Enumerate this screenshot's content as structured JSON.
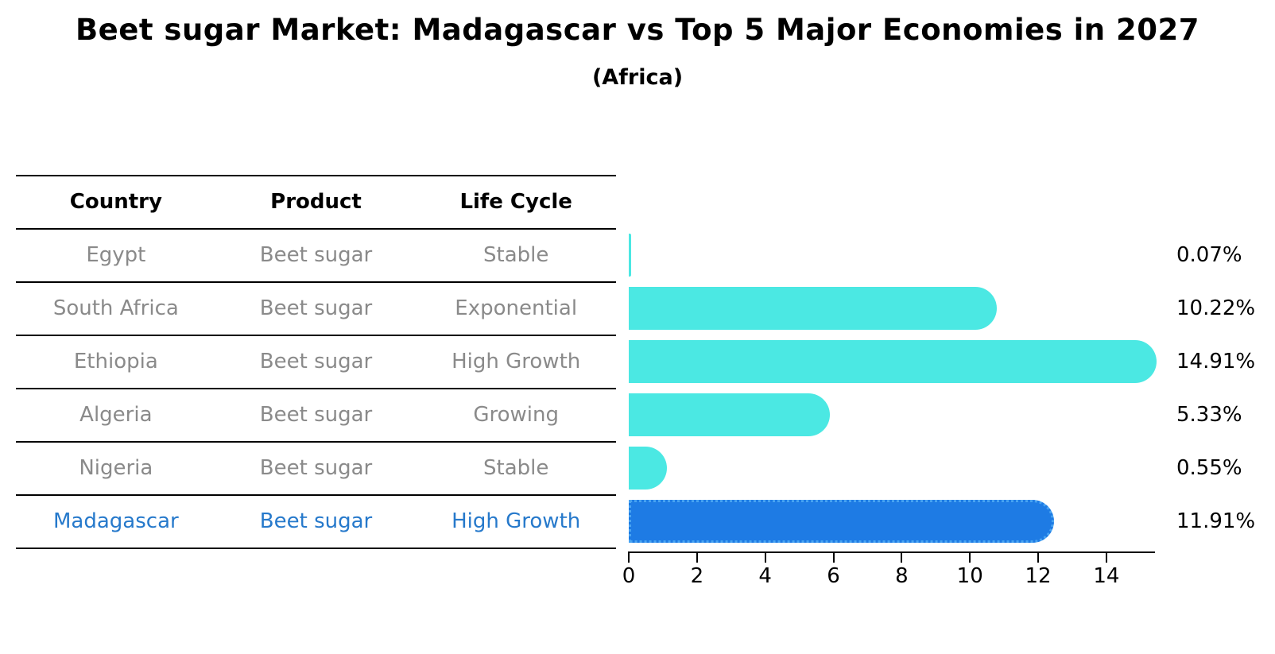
{
  "header": {
    "title": "Beet sugar Market: Madagascar vs Top 5 Major Economies in 2027",
    "subtitle": "(Africa)"
  },
  "table": {
    "headers": [
      "Country",
      "Product",
      "Life Cycle"
    ],
    "rows": [
      {
        "country": "Egypt",
        "product": "Beet sugar",
        "life_cycle": "Stable"
      },
      {
        "country": "South Africa",
        "product": "Beet sugar",
        "life_cycle": "Exponential"
      },
      {
        "country": "Ethiopia",
        "product": "Beet sugar",
        "life_cycle": "High Growth"
      },
      {
        "country": "Algeria",
        "product": "Beet sugar",
        "life_cycle": "Growing"
      },
      {
        "country": "Nigeria",
        "product": "Beet sugar",
        "life_cycle": "Stable"
      },
      {
        "country": "Madagascar",
        "product": "Beet sugar",
        "life_cycle": "High Growth"
      }
    ],
    "highlight_row": "Madagascar"
  },
  "chart_data": {
    "type": "bar",
    "orientation": "horizontal",
    "title": "Beet sugar Market: Madagascar vs Top 5 Major Economies in 2027",
    "subtitle": "(Africa)",
    "categories": [
      "Egypt",
      "South Africa",
      "Ethiopia",
      "Algeria",
      "Nigeria",
      "Madagascar"
    ],
    "values": [
      0.07,
      10.22,
      14.91,
      5.33,
      0.55,
      11.91
    ],
    "labels": [
      "0.07%",
      "10.22%",
      "14.91%",
      "5.33%",
      "0.55%",
      "11.91%"
    ],
    "xlabel": "",
    "ylabel": "",
    "xlim": [
      0,
      15.4
    ],
    "xticks": [
      0,
      2,
      4,
      6,
      8,
      10,
      12,
      14
    ],
    "grid": false,
    "legend": "none",
    "highlight_category": "Madagascar",
    "colors": {
      "default_bar": "#4BE8E3",
      "highlight_bar": "#1E7BE4",
      "highlight_bar_border": "#49A4F2",
      "table_text_gray": "#8A8A8A",
      "highlight_text": "#2679CB",
      "axis": "#000000"
    }
  }
}
